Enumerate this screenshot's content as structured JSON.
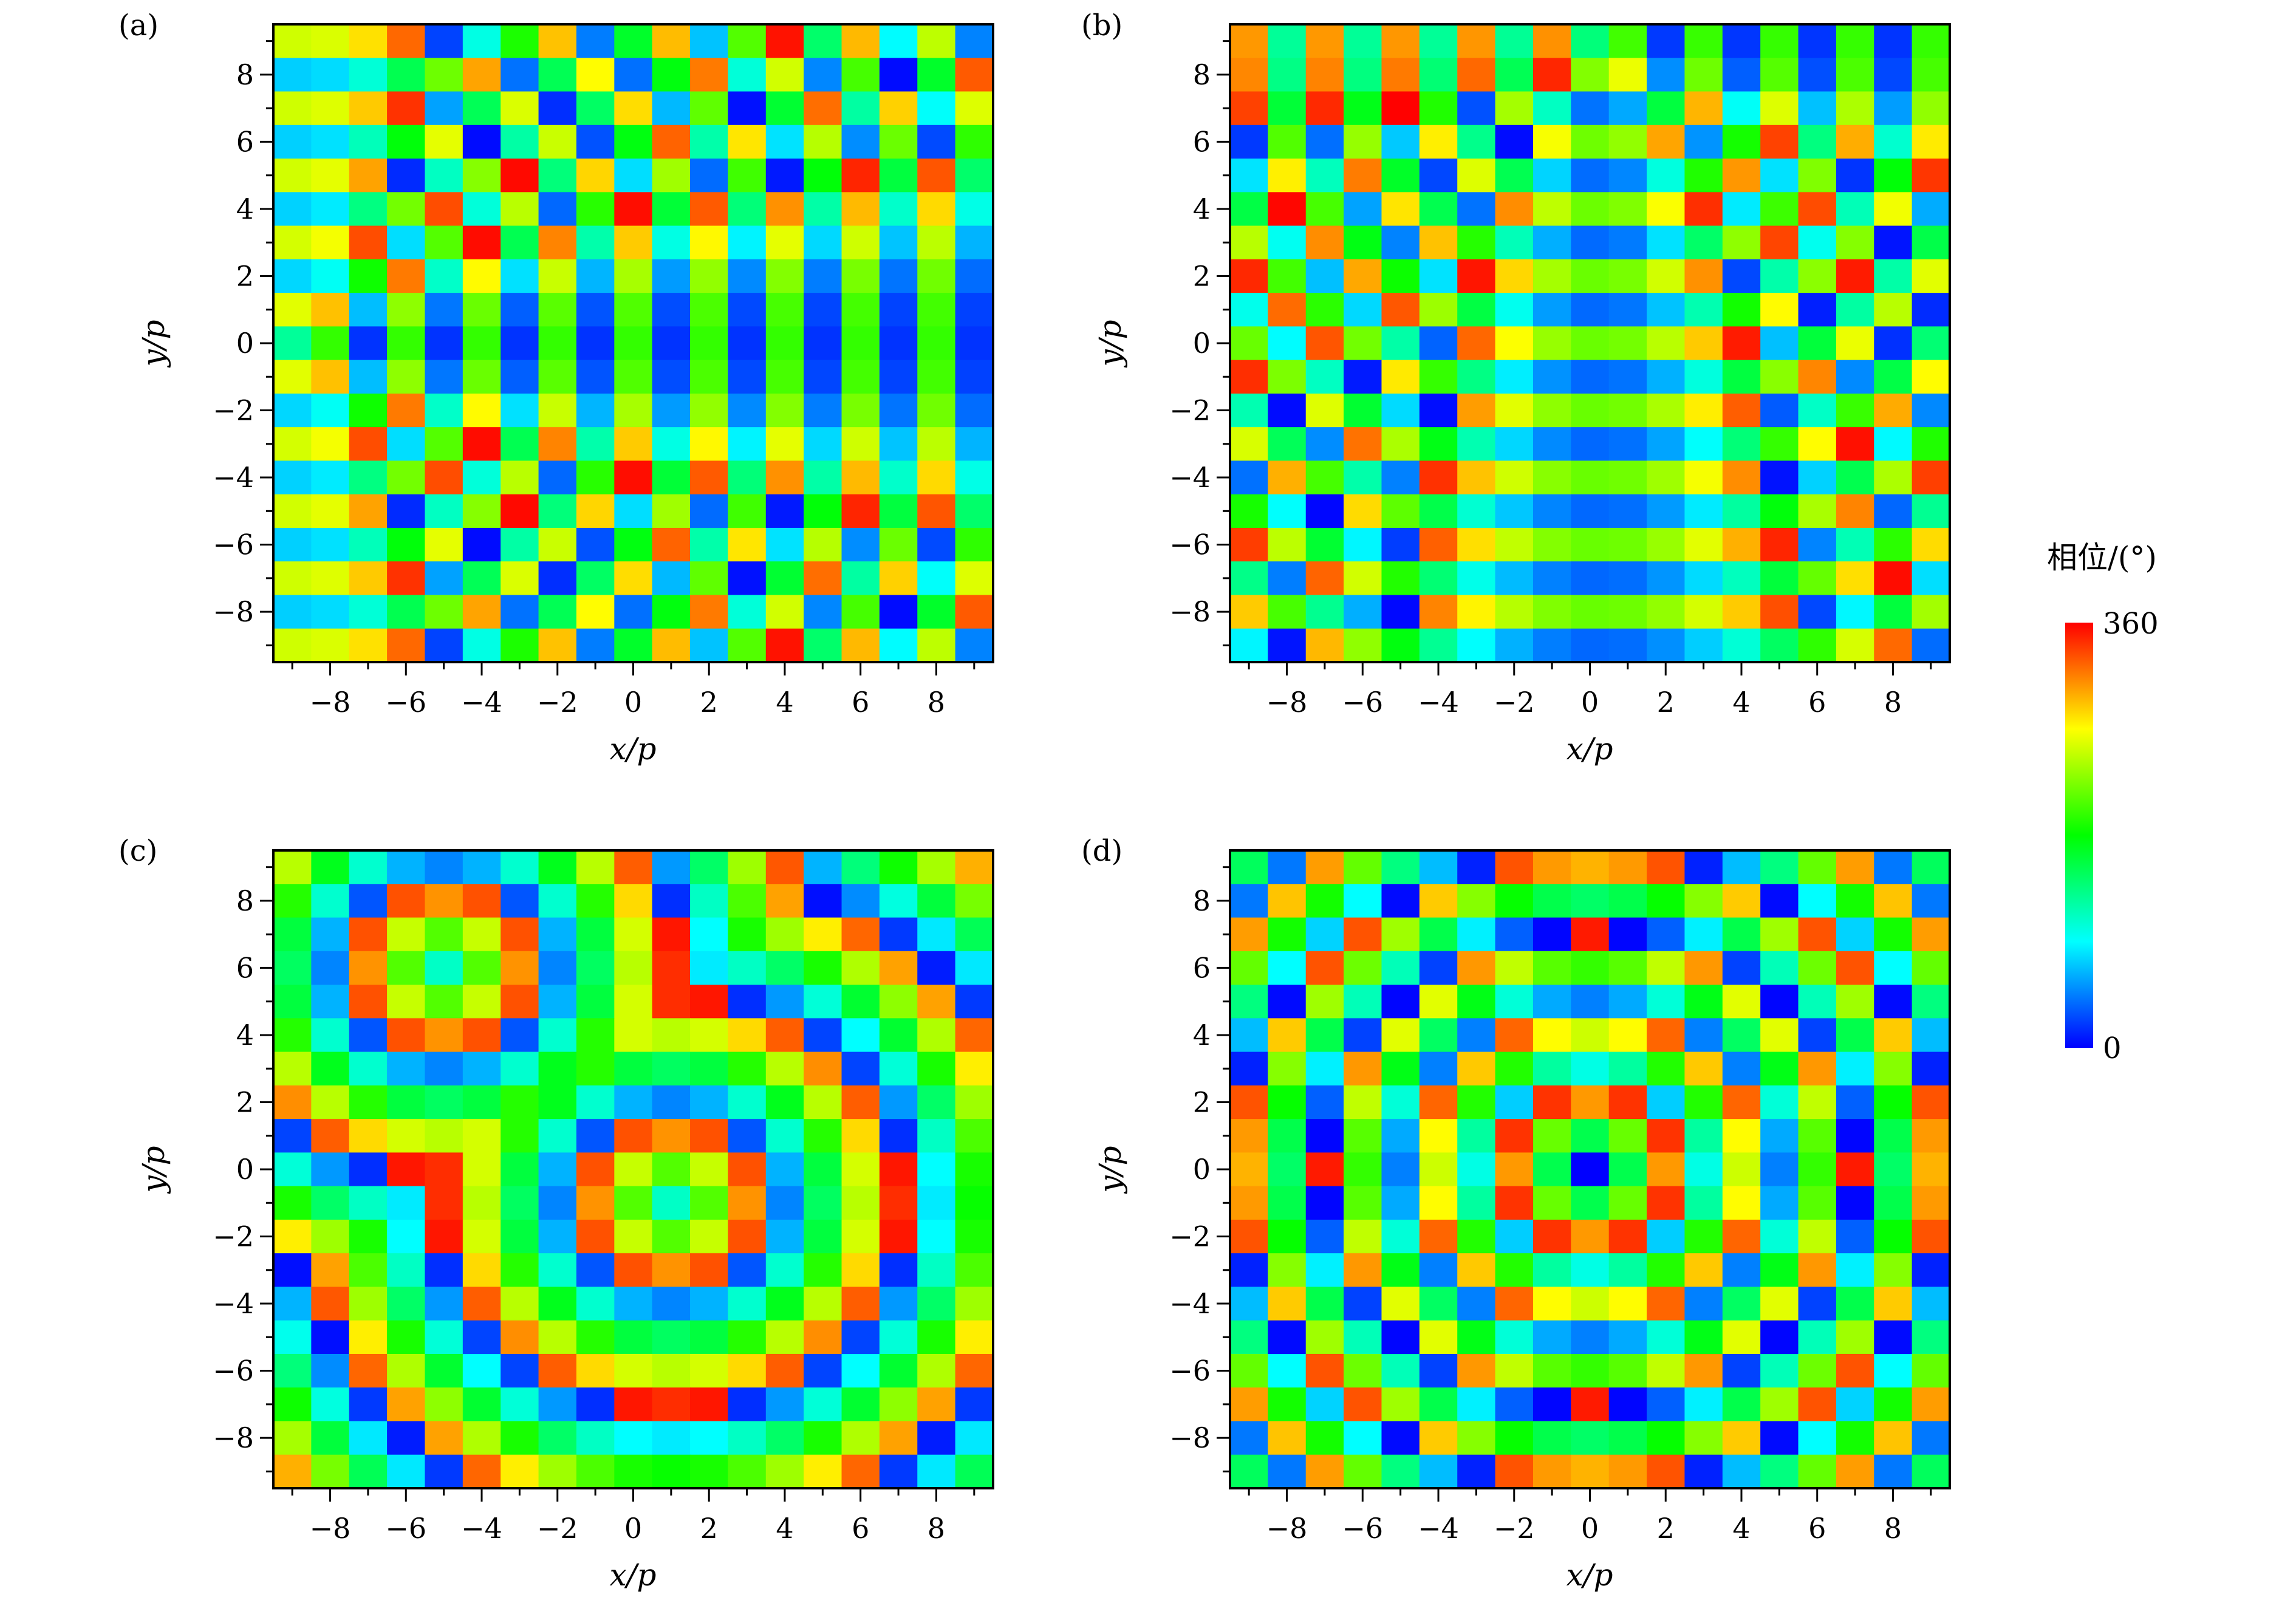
{
  "colorbar": {
    "title": "相位/(°)",
    "min_label": "0",
    "max_label": "360",
    "range": [
      0,
      360
    ],
    "colormap": [
      "#0000ff",
      "#00ffff",
      "#00ff00",
      "#ffff00",
      "#ff0000"
    ]
  },
  "chart_data": [
    {
      "type": "heatmap",
      "panel_label": "(a)",
      "xlabel": "x/p",
      "ylabel": "y/p",
      "xlim": [
        -9.5,
        9.5
      ],
      "ylim": [
        -9.5,
        9.5
      ],
      "xticks": [
        -8,
        -6,
        -4,
        -2,
        0,
        2,
        4,
        6,
        8
      ],
      "yticks": [
        -8,
        -6,
        -4,
        -2,
        0,
        2,
        4,
        6,
        8
      ],
      "xtick_labels": [
        "−8",
        "−6",
        "−4",
        "−2",
        "0",
        "2",
        "4",
        "6",
        "8"
      ],
      "ytick_labels": [
        "−8",
        "−6",
        "−4",
        "−2",
        "0",
        "2",
        "4",
        "6",
        "8"
      ],
      "grid": {
        "rows": 19,
        "cols": 19,
        "cell_size": 1,
        "unit": "degree"
      },
      "pattern": {
        "kind": "radial",
        "center": [
          -8.7,
          0
        ],
        "k": 1.0,
        "offset": 72
      }
    },
    {
      "type": "heatmap",
      "panel_label": "(b)",
      "xlabel": "x/p",
      "ylabel": "y/p",
      "xlim": [
        -9.5,
        9.5
      ],
      "ylim": [
        -9.5,
        9.5
      ],
      "xticks": [
        -8,
        -6,
        -4,
        -2,
        0,
        2,
        4,
        6,
        8
      ],
      "yticks": [
        -8,
        -6,
        -4,
        -2,
        0,
        2,
        4,
        6,
        8
      ],
      "xtick_labels": [
        "−8",
        "−6",
        "−4",
        "−2",
        "0",
        "2",
        "4",
        "6",
        "8"
      ],
      "ytick_labels": [
        "−8",
        "−6",
        "−4",
        "−2",
        "0",
        "2",
        "4",
        "6",
        "8"
      ],
      "grid": {
        "rows": 19,
        "cols": 19,
        "cell_size": 1,
        "unit": "degree"
      },
      "pattern": {
        "kind": "radial",
        "center": [
          0.3,
          8.8
        ],
        "k": 1.0,
        "offset": 72
      }
    },
    {
      "type": "heatmap",
      "panel_label": "(c)",
      "xlabel": "x/p",
      "ylabel": "y/p",
      "xlim": [
        -9.5,
        9.5
      ],
      "ylim": [
        -9.5,
        9.5
      ],
      "xticks": [
        -8,
        -6,
        -4,
        -2,
        0,
        2,
        4,
        6,
        8
      ],
      "yticks": [
        -8,
        -6,
        -4,
        -2,
        0,
        2,
        4,
        6,
        8
      ],
      "xtick_labels": [
        "−8",
        "−6",
        "−4",
        "−2",
        "0",
        "2",
        "4",
        "6",
        "8"
      ],
      "ytick_labels": [
        "−8",
        "−6",
        "−4",
        "−2",
        "0",
        "2",
        "4",
        "6",
        "8"
      ],
      "grid": {
        "rows": 19,
        "cols": 19,
        "cell_size": 1,
        "unit": "degree"
      },
      "pattern": {
        "kind": "focus-pair",
        "centers": [
          [
            -5,
            6
          ],
          [
            1,
            -1
          ]
        ],
        "k": 0.55,
        "offset": 110
      }
    },
    {
      "type": "heatmap",
      "panel_label": "(d)",
      "xlabel": "x/p",
      "ylabel": "y/p",
      "xlim": [
        -9.5,
        9.5
      ],
      "ylim": [
        -9.5,
        9.5
      ],
      "xticks": [
        -8,
        -6,
        -4,
        -2,
        0,
        2,
        4,
        6,
        8
      ],
      "yticks": [
        -8,
        -6,
        -4,
        -2,
        0,
        2,
        4,
        6,
        8
      ],
      "xtick_labels": [
        "−8",
        "−6",
        "−4",
        "−2",
        "0",
        "2",
        "4",
        "6",
        "8"
      ],
      "ytick_labels": [
        "−8",
        "−6",
        "−4",
        "−2",
        "0",
        "2",
        "4",
        "6",
        "8"
      ],
      "grid": {
        "rows": 19,
        "cols": 19,
        "cell_size": 1,
        "unit": "degree"
      },
      "pattern": {
        "kind": "radial",
        "center": [
          0,
          0
        ],
        "k": 0.85,
        "offset": 0
      }
    }
  ]
}
